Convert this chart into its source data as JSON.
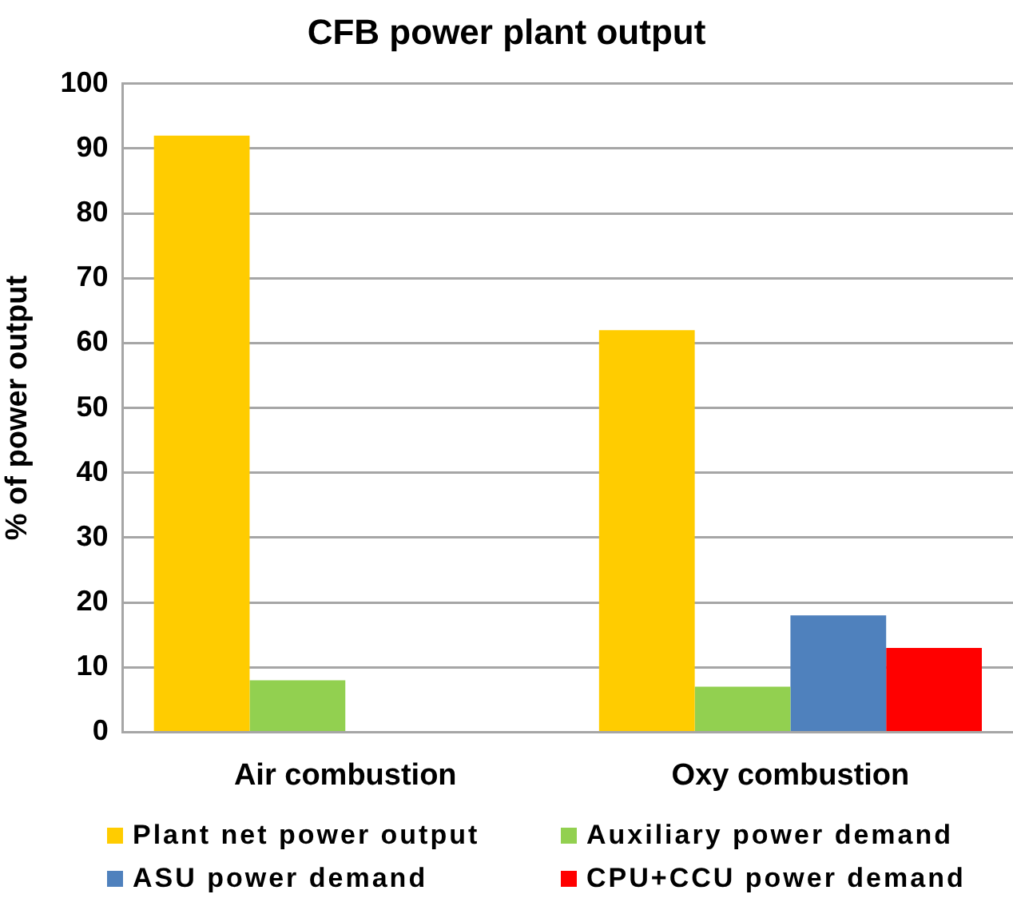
{
  "chart_data": {
    "type": "bar",
    "title": "CFB power plant output",
    "ylabel": "% of power output",
    "categories": [
      "Air combustion",
      "Oxy combustion"
    ],
    "series": [
      {
        "name": "Plant net power output",
        "color": "#ffcc00",
        "values": [
          92,
          62
        ]
      },
      {
        "name": "Auxiliary power demand",
        "color": "#92d050",
        "values": [
          8,
          7
        ]
      },
      {
        "name": "ASU power demand",
        "color": "#4f81bd",
        "values": [
          null,
          18
        ]
      },
      {
        "name": "CPU+CCU power demand",
        "color": "#ff0000",
        "values": [
          null,
          13
        ]
      }
    ],
    "ylim": [
      0,
      100
    ],
    "yticks": [
      0,
      10,
      20,
      30,
      40,
      50,
      60,
      70,
      80,
      90,
      100
    ],
    "grid": "y",
    "legend": "bottom"
  }
}
